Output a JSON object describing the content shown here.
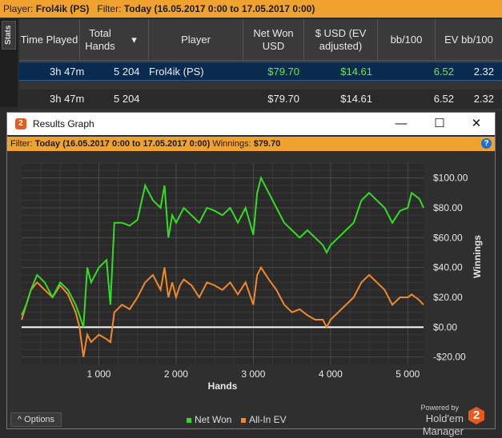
{
  "topbar": {
    "player_label": "Player:",
    "player_value": "Frol4ik (PS)",
    "filter_label": "Filter:",
    "filter_value": "Today (16.05.2017 0:00 to 17.05.2017 0:00)"
  },
  "side_tab": "Stats",
  "table": {
    "columns": [
      "Time Played",
      "Total Hands",
      "Player",
      "Net Won USD",
      "$ USD (EV adjusted)",
      "bb/100",
      "EV bb/100"
    ],
    "sort_indicator": "▾",
    "selected_row": {
      "time": "3h 47m",
      "hands": "5 204",
      "player": "Frol4ik (PS)",
      "net_won": "$79.70",
      "ev_adjusted": "$14.61",
      "bb100": "6.52",
      "ev_bb100": "2.32"
    },
    "total_row": {
      "time": "3h 47m",
      "hands": "5 204",
      "player": "",
      "net_won": "$79.70",
      "ev_adjusted": "$14.61",
      "bb100": "6.52",
      "ev_bb100": "2.32"
    }
  },
  "window": {
    "logo_glyph": "2",
    "title": "Results Graph",
    "minimize": "—",
    "maximize": "☐",
    "close": "✕",
    "filter_label": "Filter:",
    "filter_value": "Today (16.05.2017 0:00 to 17.05.2017 0:00)",
    "winnings_label": "Winnings:",
    "winnings_value": "$79.70",
    "help_glyph": "?",
    "options_label": "^  Options",
    "brand_powered": "Powered by",
    "brand_name": "Hold'em Manager",
    "brand_logo": "2"
  },
  "colors": {
    "net_won": "#33dd22",
    "all_in_ev": "#f08a2a",
    "accent": "#f0a22f"
  },
  "chart_data": {
    "type": "line",
    "xlabel": "Hands",
    "ylabel": "Winnings",
    "xlim": [
      0,
      5204
    ],
    "ylim": [
      -25,
      110
    ],
    "x_ticks": [
      1000,
      2000,
      3000,
      4000,
      5000
    ],
    "x_tick_labels": [
      "1 000",
      "2 000",
      "3 000",
      "4 000",
      "5 000"
    ],
    "y_ticks": [
      100,
      80,
      60,
      40,
      20,
      0,
      -20
    ],
    "y_tick_labels": [
      "$100.00",
      "$80.00",
      "$60.00",
      "$40.00",
      "$20.00",
      "$0.00",
      "-$20.00"
    ],
    "grid": true,
    "legend": "bottom-center",
    "series": [
      {
        "name": "Net Won",
        "x": [
          0,
          60,
          120,
          200,
          300,
          400,
          500,
          600,
          700,
          750,
          800,
          850,
          900,
          1000,
          1100,
          1150,
          1200,
          1300,
          1400,
          1500,
          1600,
          1700,
          1800,
          1850,
          1900,
          1950,
          2000,
          2050,
          2100,
          2200,
          2300,
          2400,
          2500,
          2600,
          2700,
          2800,
          2900,
          3000,
          3050,
          3100,
          3200,
          3300,
          3400,
          3500,
          3600,
          3700,
          3800,
          3900,
          3950,
          4000,
          4100,
          4200,
          4300,
          4400,
          4500,
          4600,
          4700,
          4800,
          4900,
          5000,
          5050,
          5100,
          5150,
          5204
        ],
        "y": [
          8,
          15,
          25,
          35,
          30,
          20,
          30,
          25,
          15,
          8,
          0,
          40,
          30,
          40,
          45,
          15,
          70,
          70,
          68,
          72,
          95,
          85,
          80,
          95,
          60,
          75,
          70,
          75,
          80,
          75,
          70,
          80,
          78,
          75,
          80,
          70,
          80,
          62,
          90,
          100,
          90,
          80,
          70,
          65,
          60,
          65,
          60,
          55,
          50,
          55,
          60,
          65,
          70,
          85,
          90,
          85,
          80,
          70,
          78,
          80,
          90,
          88,
          86,
          80
        ]
      },
      {
        "name": "All-In EV",
        "x": [
          0,
          60,
          120,
          200,
          300,
          400,
          500,
          600,
          700,
          750,
          800,
          850,
          900,
          1000,
          1100,
          1150,
          1200,
          1300,
          1400,
          1500,
          1600,
          1700,
          1800,
          1850,
          1900,
          1950,
          2000,
          2050,
          2100,
          2200,
          2300,
          2400,
          2500,
          2600,
          2700,
          2800,
          2900,
          3000,
          3050,
          3100,
          3200,
          3300,
          3400,
          3500,
          3600,
          3700,
          3800,
          3900,
          3950,
          4000,
          4100,
          4200,
          4300,
          4400,
          4500,
          4600,
          4700,
          4800,
          4900,
          5000,
          5050,
          5100,
          5150,
          5204
        ],
        "y": [
          5,
          15,
          25,
          30,
          25,
          20,
          28,
          22,
          10,
          0,
          -20,
          -5,
          -10,
          -5,
          -8,
          -10,
          10,
          15,
          12,
          20,
          30,
          35,
          25,
          40,
          20,
          30,
          20,
          28,
          32,
          28,
          20,
          30,
          28,
          25,
          30,
          22,
          30,
          15,
          35,
          40,
          32,
          25,
          15,
          10,
          12,
          8,
          5,
          5,
          0,
          5,
          10,
          15,
          20,
          30,
          35,
          30,
          25,
          15,
          20,
          20,
          22,
          20,
          18,
          15
        ]
      }
    ]
  }
}
